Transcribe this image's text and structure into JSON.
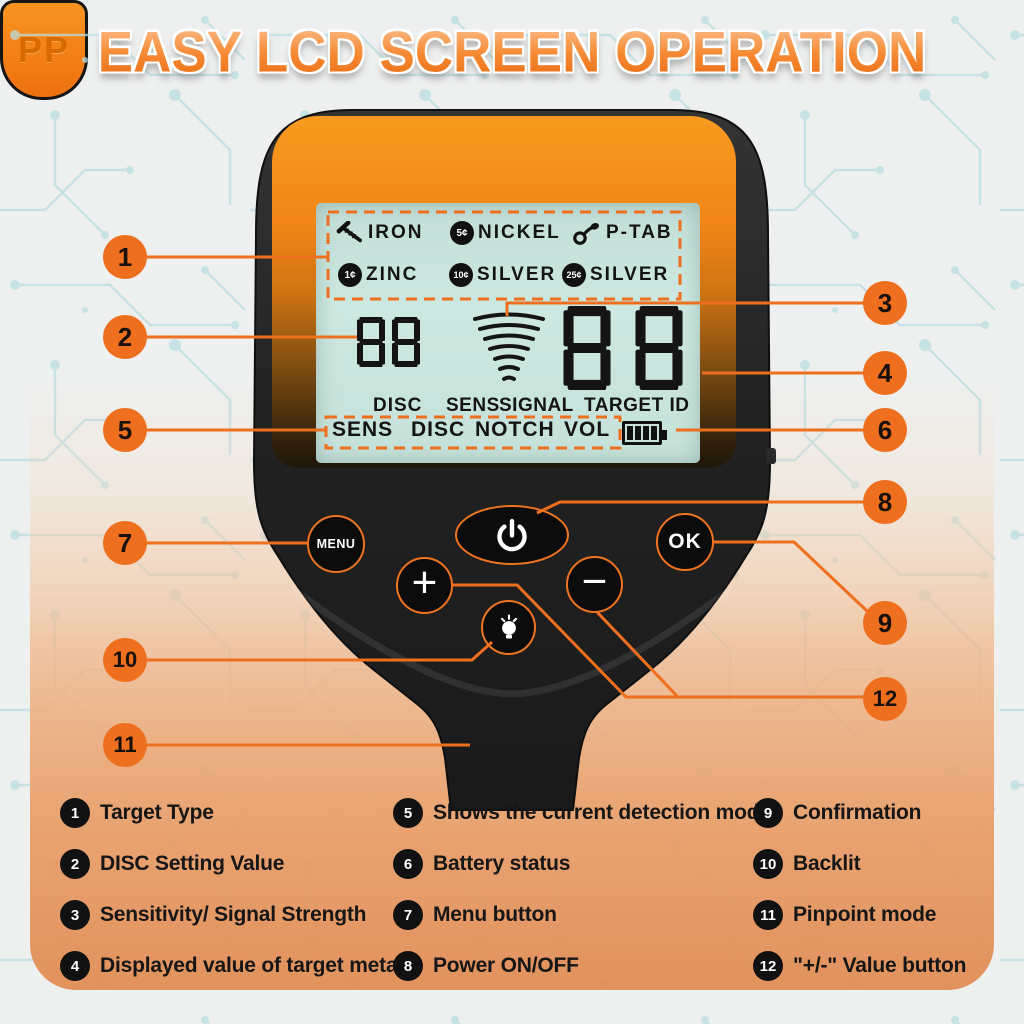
{
  "title": "EASY LCD SCREEN OPERATION",
  "lcd": {
    "targets": [
      {
        "icon": "nail-icon",
        "label": "IRON"
      },
      {
        "icon": "coin-icon",
        "coin": "5¢",
        "label": "NICKEL"
      },
      {
        "icon": "pulltab-icon",
        "label": "P-TAB"
      },
      {
        "icon": "coin-icon",
        "coin": "1¢",
        "label": "ZINC"
      },
      {
        "icon": "coin-icon",
        "coin": "10¢",
        "label": "SILVER"
      },
      {
        "icon": "coin-icon",
        "coin": "25¢",
        "label": "SILVER"
      }
    ],
    "disc_value": "88",
    "target_id_value": "88",
    "labels": {
      "disc": "DISC",
      "sens": "SENS",
      "signal": "SIGNAL",
      "target_id": "TARGET ID"
    },
    "modes": [
      "SENS",
      "DISC",
      "NOTCH",
      "VOL"
    ],
    "battery_bars": 4
  },
  "buttons": {
    "menu": "MENU",
    "ok": "OK",
    "plus": "+",
    "minus": "−",
    "pinpoint": "PP"
  },
  "callouts": [
    {
      "num": "1",
      "label": "Target Type"
    },
    {
      "num": "2",
      "label": "DISC Setting Value"
    },
    {
      "num": "3",
      "label": "Sensitivity/ Signal Strength"
    },
    {
      "num": "4",
      "label": "Displayed value of target metal"
    },
    {
      "num": "5",
      "label": "Shows the current detection mode"
    },
    {
      "num": "6",
      "label": "Battery status"
    },
    {
      "num": "7",
      "label": "Menu button"
    },
    {
      "num": "8",
      "label": "Power ON/OFF"
    },
    {
      "num": "9",
      "label": "Confirmation"
    },
    {
      "num": "10",
      "label": "Backlit"
    },
    {
      "num": "11",
      "label": "Pinpoint mode"
    },
    {
      "num": "12",
      "label": "\"+/-\" Value button"
    }
  ],
  "colors": {
    "accent": "#ee6f1e",
    "lcd": "#cbe5dd",
    "bezel": "#f28a1b",
    "body": "#232323",
    "panel": "#df8f5c"
  }
}
